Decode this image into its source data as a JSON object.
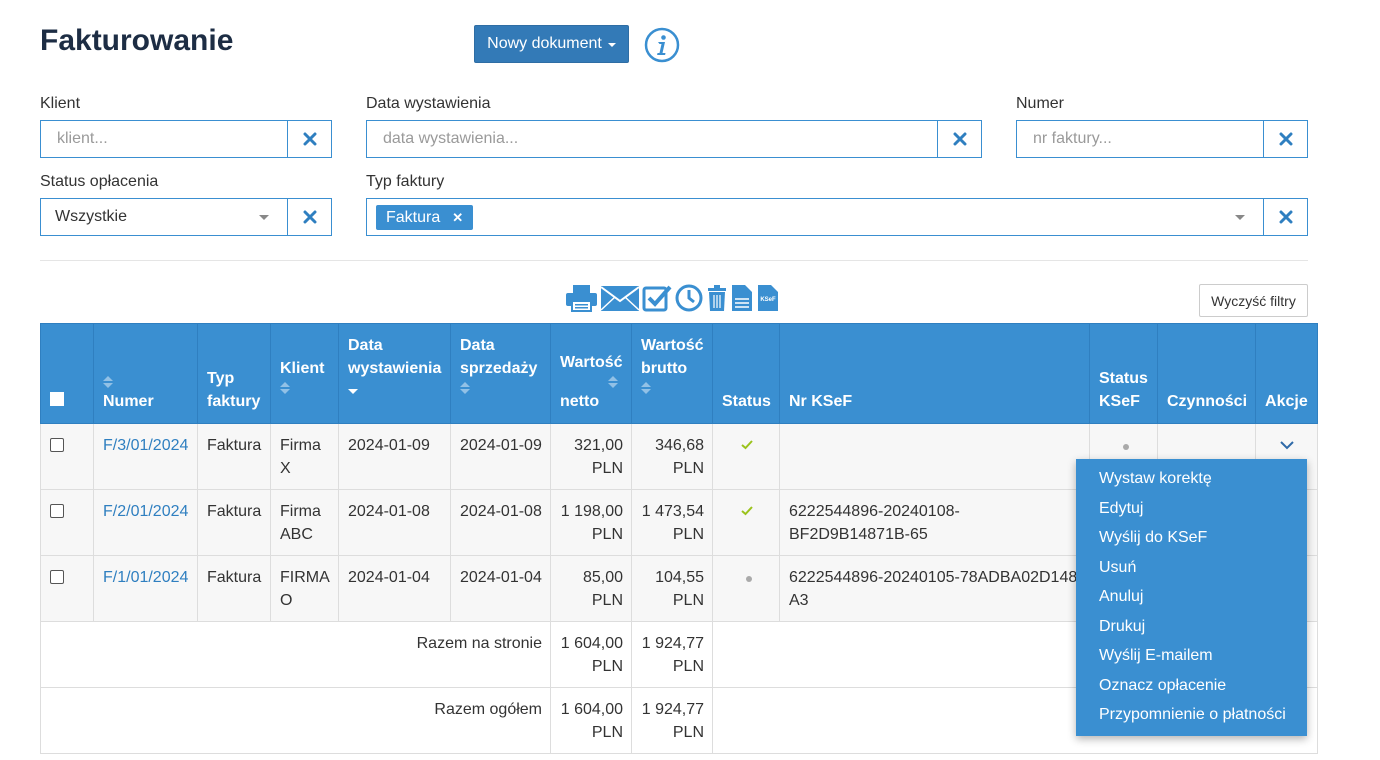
{
  "page": {
    "title": "Fakturowanie"
  },
  "header": {
    "new_document_label": "Nowy dokument"
  },
  "filters": {
    "client": {
      "label": "Klient",
      "placeholder": "klient..."
    },
    "issue_date": {
      "label": "Data wystawienia",
      "placeholder": "data wystawienia..."
    },
    "number": {
      "label": "Numer",
      "placeholder": "nr faktury..."
    },
    "payment_status": {
      "label": "Status opłacenia",
      "value": "Wszystkie"
    },
    "invoice_type": {
      "label": "Typ faktury",
      "tags": [
        "Faktura"
      ]
    }
  },
  "toolbar": {
    "icons": [
      "printer-icon",
      "envelope-icon",
      "checkbox-icon",
      "clock-icon",
      "trash-icon",
      "document-icon",
      "ksef-document-icon"
    ],
    "ksef_icon_text": "KSeF",
    "clear_filters_label": "Wyczyść filtry"
  },
  "table": {
    "headers": {
      "numer": "Numer",
      "typ_1": "Typ",
      "typ_2": "faktury",
      "klient": "Klient",
      "data_w_1": "Data",
      "data_w_2": "wystawienia",
      "data_s_1": "Data",
      "data_s_2": "sprzedaży",
      "netto_1": "Wartość",
      "netto_2": "netto",
      "brutto_1": "Wartość",
      "brutto_2": "brutto",
      "status": "Status",
      "nr_ksef": "Nr KSeF",
      "status_ksef_1": "Status",
      "status_ksef_2": "KSeF",
      "czynnosci": "Czynności",
      "akcje": "Akcje"
    },
    "rows": [
      {
        "numer": "F/3/01/2024",
        "typ": "Faktura",
        "klient_1": "Firma",
        "klient_2": "X",
        "data_w": "2024-01-09",
        "data_s": "2024-01-09",
        "netto_1": "321,00",
        "netto_2": "PLN",
        "brutto_1": "346,68",
        "brutto_2": "PLN",
        "status": "paid",
        "ksef_1": "",
        "ksef_2": ""
      },
      {
        "numer": "F/2/01/2024",
        "typ": "Faktura",
        "klient_1": "Firma",
        "klient_2": "ABC",
        "data_w": "2024-01-08",
        "data_s": "2024-01-08",
        "netto_1": "1 198,00",
        "netto_2": "PLN",
        "brutto_1": "1 473,54",
        "brutto_2": "PLN",
        "status": "paid",
        "ksef_1": "6222544896-20240108-",
        "ksef_2": "BF2D9B14871B-65"
      },
      {
        "numer": "F/1/01/2024",
        "typ": "Faktura",
        "klient_1": "FIRMA",
        "klient_2": "O",
        "data_w": "2024-01-04",
        "data_s": "2024-01-04",
        "netto_1": "85,00",
        "netto_2": "PLN",
        "brutto_1": "104,55",
        "brutto_2": "PLN",
        "status": "unpaid",
        "ksef_1": "6222544896-20240105-78ADBA02D148-",
        "ksef_2": "A3"
      }
    ],
    "summary": [
      {
        "label": "Razem na stronie",
        "netto_1": "1 604,00",
        "netto_2": "PLN",
        "brutto_1": "1 924,77",
        "brutto_2": "PLN"
      },
      {
        "label": "Razem ogółem",
        "netto_1": "1 604,00",
        "netto_2": "PLN",
        "brutto_1": "1 924,77",
        "brutto_2": "PLN"
      }
    ]
  },
  "actions_menu": {
    "items": [
      "Wystaw korektę",
      "Edytuj",
      "Wyślij do KSeF",
      "Usuń",
      "Anuluj",
      "Drukuj",
      "Wyślij E-mailem",
      "Oznacz opłacenie",
      "Przypomnienie o płatności"
    ]
  },
  "colors": {
    "primary": "#3a8fd1",
    "title": "#1d2d44",
    "check": "#9bc31c"
  }
}
